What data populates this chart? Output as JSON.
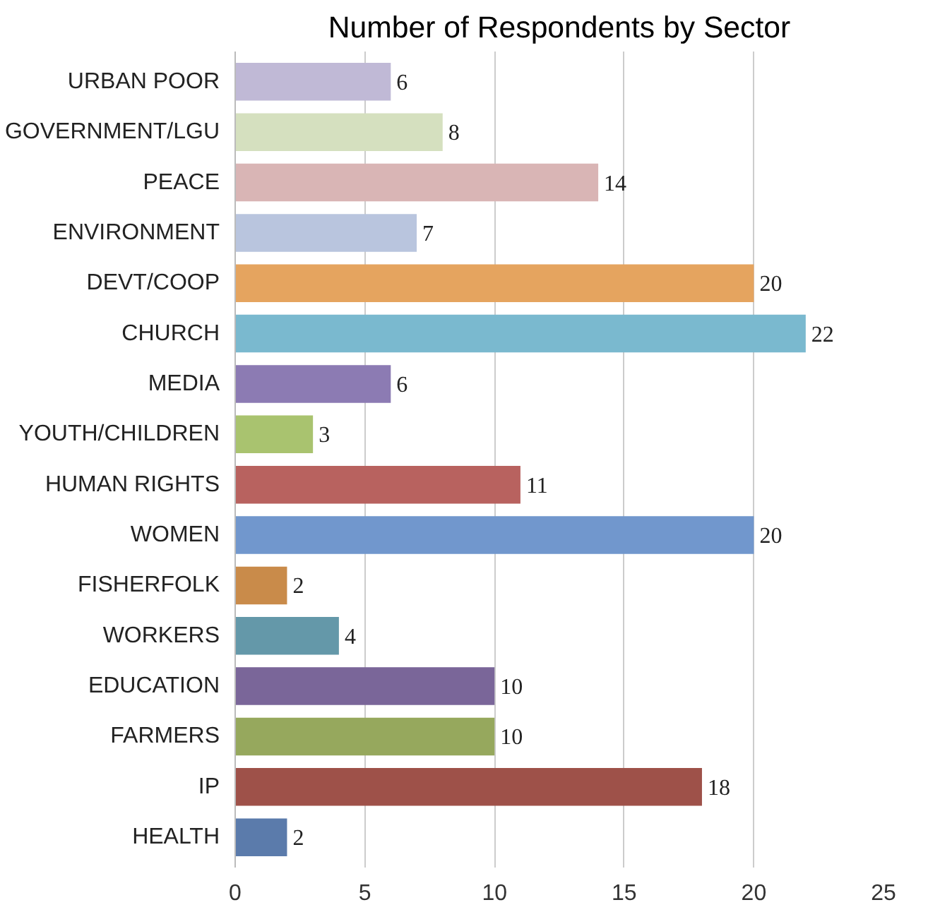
{
  "chart_data": {
    "type": "bar",
    "orientation": "horizontal",
    "title": "Number of Respondents by Sector",
    "categories": [
      "URBAN POOR",
      "GOVERNMENT/LGU",
      "PEACE",
      "ENVIRONMENT",
      "DEVT/COOP",
      "CHURCH",
      "MEDIA",
      "YOUTH/CHILDREN",
      "HUMAN RIGHTS",
      "WOMEN",
      "FISHERFOLK",
      "WORKERS",
      "EDUCATION",
      "FARMERS",
      "IP",
      "HEALTH"
    ],
    "values": [
      6,
      8,
      14,
      7,
      20,
      22,
      6,
      3,
      11,
      20,
      2,
      4,
      10,
      10,
      18,
      2
    ],
    "colors": [
      "#c0b9d6",
      "#d5e0bf",
      "#d9b5b5",
      "#b9c5de",
      "#e5a45f",
      "#7ab9cf",
      "#8c7bb3",
      "#a9c36f",
      "#b8625f",
      "#7197cd",
      "#c98b4a",
      "#6498a9",
      "#7a6699",
      "#96a85d",
      "#9e5149",
      "#5b7bab"
    ],
    "xlim": [
      0,
      25
    ],
    "xticks": [
      0,
      5,
      10,
      15,
      20,
      25
    ],
    "grid": "x",
    "data_labels": true
  }
}
